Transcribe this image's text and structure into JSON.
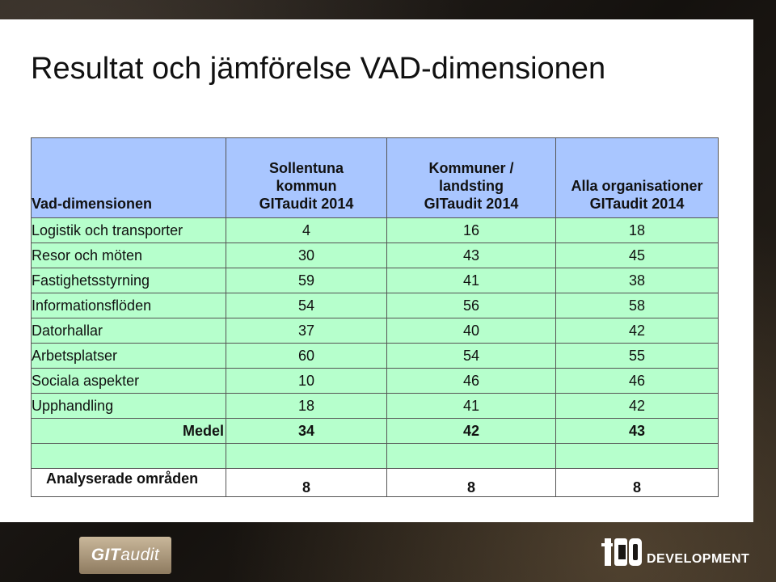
{
  "slide": {
    "title": "Resultat och jämförelse VAD-dimensionen"
  },
  "table": {
    "headers": [
      {
        "line1": "",
        "line2": "",
        "line3": "Vad-dimensionen"
      },
      {
        "line1": "Sollentuna",
        "line2": "kommun",
        "line3": "GITaudit 2014"
      },
      {
        "line1": "Kommuner /",
        "line2": "landsting",
        "line3": "GITaudit 2014"
      },
      {
        "line1": "",
        "line2": "Alla organisationer",
        "line3": "GITaudit 2014"
      }
    ],
    "rows": [
      {
        "label": "Logistik och transporter",
        "v1": "4",
        "v2": "16",
        "v3": "18"
      },
      {
        "label": "Resor och möten",
        "v1": "30",
        "v2": "43",
        "v3": "45"
      },
      {
        "label": "Fastighetsstyrning",
        "v1": "59",
        "v2": "41",
        "v3": "38"
      },
      {
        "label": "Informationsflöden",
        "v1": "54",
        "v2": "56",
        "v3": "58"
      },
      {
        "label": "Datorhallar",
        "v1": "37",
        "v2": "40",
        "v3": "42"
      },
      {
        "label": "Arbetsplatser",
        "v1": "60",
        "v2": "54",
        "v3": "55"
      },
      {
        "label": "Sociala aspekter",
        "v1": "10",
        "v2": "46",
        "v3": "46"
      },
      {
        "label": "Upphandling",
        "v1": "18",
        "v2": "41",
        "v3": "42"
      }
    ],
    "medel": {
      "label": "Medel",
      "v1": "34",
      "v2": "42",
      "v3": "43"
    },
    "analyserade": {
      "label": "Analyserade områden",
      "v1": "8",
      "v2": "8",
      "v3": "8"
    }
  },
  "footer": {
    "git_logo_bold": "GIT",
    "git_logo_rest": "audit",
    "tco_word": "DEVELOPMENT"
  },
  "colors": {
    "header_fill": "#a9c6ff",
    "row_fill": "#b6ffcc"
  }
}
